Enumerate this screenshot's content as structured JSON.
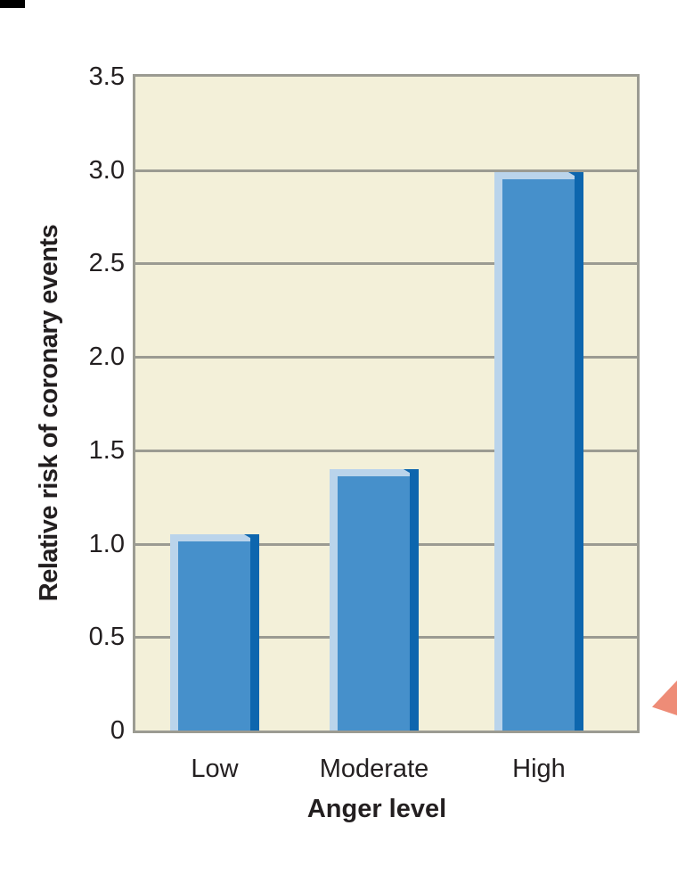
{
  "chart_data": {
    "type": "bar",
    "title": "",
    "categories": [
      "Low",
      "Moderate",
      "High"
    ],
    "values": [
      1.05,
      1.4,
      2.99
    ],
    "xlabel": "Anger level",
    "ylabel": "Relative risk of coronary events",
    "ylim": [
      0,
      3.5
    ],
    "ytick_interval": 0.5,
    "ytick_labels": [
      "3.5",
      "3.0",
      "2.5",
      "2.0",
      "1.5",
      "1.0",
      "0.5",
      "0"
    ],
    "grid": "horizontal",
    "legend": "none",
    "colors": {
      "plot_background": "#f3f0d9",
      "grid_line": "#9b9b92",
      "bar_fill": "#4690cb",
      "bar_highlight": "#bad4eb",
      "bar_shadow": "#0d66ae",
      "text": "#231f20",
      "decoration_triangle": "#ee8c77",
      "corner_mark": "#000000"
    }
  }
}
